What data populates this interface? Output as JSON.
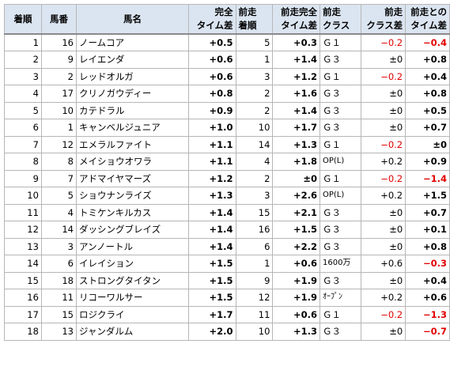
{
  "colors": {
    "header_bg": "#dbe5f1",
    "grid": "#b7b7b7",
    "negative": "#e00000",
    "text": "#000000"
  },
  "headers": {
    "finish": [
      "着順"
    ],
    "gate": [
      "馬番"
    ],
    "horse": [
      "馬名"
    ],
    "total_diff": [
      "完全",
      "タイム差"
    ],
    "prev_finish": [
      "前走",
      "着順"
    ],
    "prev_total_diff": [
      "前走完全",
      "タイム差"
    ],
    "prev_class": [
      "前走",
      "クラス"
    ],
    "prev_class_diff": [
      "前走",
      "クラス差"
    ],
    "diff_vs_prev": [
      "前走との",
      "タイム差"
    ]
  },
  "rows": [
    {
      "finish": "1",
      "gate": "16",
      "name": "ノームコア",
      "total": "+0.5",
      "prev_finish": "5",
      "prev_total": "+0.3",
      "prev_class": "Ｇ１",
      "class_diff": "−0.2",
      "class_diff_neg": true,
      "delta": "−0.4",
      "delta_neg": true
    },
    {
      "finish": "2",
      "gate": "9",
      "name": "レイエンダ",
      "total": "+0.6",
      "prev_finish": "1",
      "prev_total": "+1.4",
      "prev_class": "Ｇ３",
      "class_diff": "±0",
      "class_diff_neg": false,
      "delta": "+0.8",
      "delta_neg": false
    },
    {
      "finish": "3",
      "gate": "2",
      "name": "レッドオルガ",
      "total": "+0.6",
      "prev_finish": "3",
      "prev_total": "+1.2",
      "prev_class": "Ｇ１",
      "class_diff": "−0.2",
      "class_diff_neg": true,
      "delta": "+0.4",
      "delta_neg": false
    },
    {
      "finish": "4",
      "gate": "17",
      "name": "クリノガウディー",
      "total": "+0.8",
      "prev_finish": "2",
      "prev_total": "+1.6",
      "prev_class": "Ｇ３",
      "class_diff": "±0",
      "class_diff_neg": false,
      "delta": "+0.8",
      "delta_neg": false
    },
    {
      "finish": "5",
      "gate": "10",
      "name": "カテドラル",
      "total": "+0.9",
      "prev_finish": "2",
      "prev_total": "+1.4",
      "prev_class": "Ｇ３",
      "class_diff": "±0",
      "class_diff_neg": false,
      "delta": "+0.5",
      "delta_neg": false
    },
    {
      "finish": "6",
      "gate": "1",
      "name": "キャンベルジュニア",
      "total": "+1.0",
      "prev_finish": "10",
      "prev_total": "+1.7",
      "prev_class": "Ｇ３",
      "class_diff": "±0",
      "class_diff_neg": false,
      "delta": "+0.7",
      "delta_neg": false
    },
    {
      "finish": "7",
      "gate": "12",
      "name": "エメラルファイト",
      "total": "+1.1",
      "prev_finish": "14",
      "prev_total": "+1.3",
      "prev_class": "Ｇ１",
      "class_diff": "−0.2",
      "class_diff_neg": true,
      "delta": "±0",
      "delta_neg": false
    },
    {
      "finish": "8",
      "gate": "8",
      "name": "メイショウオワラ",
      "total": "+1.1",
      "prev_finish": "4",
      "prev_total": "+1.8",
      "prev_class": "OP(L)",
      "class_diff": "+0.2",
      "class_diff_neg": false,
      "delta": "+0.9",
      "delta_neg": false
    },
    {
      "finish": "9",
      "gate": "7",
      "name": "アドマイヤマーズ",
      "total": "+1.2",
      "prev_finish": "2",
      "prev_total": "±0",
      "prev_class": "Ｇ１",
      "class_diff": "−0.2",
      "class_diff_neg": true,
      "delta": "−1.4",
      "delta_neg": true
    },
    {
      "finish": "10",
      "gate": "5",
      "name": "ショウナンライズ",
      "total": "+1.3",
      "prev_finish": "3",
      "prev_total": "+2.6",
      "prev_class": "OP(L)",
      "class_diff": "+0.2",
      "class_diff_neg": false,
      "delta": "+1.5",
      "delta_neg": false
    },
    {
      "finish": "11",
      "gate": "4",
      "name": "トミケンキルカス",
      "total": "+1.4",
      "prev_finish": "15",
      "prev_total": "+2.1",
      "prev_class": "Ｇ３",
      "class_diff": "±0",
      "class_diff_neg": false,
      "delta": "+0.7",
      "delta_neg": false
    },
    {
      "finish": "12",
      "gate": "14",
      "name": "ダッシングブレイズ",
      "total": "+1.4",
      "prev_finish": "16",
      "prev_total": "+1.5",
      "prev_class": "Ｇ３",
      "class_diff": "±0",
      "class_diff_neg": false,
      "delta": "+0.1",
      "delta_neg": false
    },
    {
      "finish": "13",
      "gate": "3",
      "name": "アンノートル",
      "total": "+1.4",
      "prev_finish": "6",
      "prev_total": "+2.2",
      "prev_class": "Ｇ３",
      "class_diff": "±0",
      "class_diff_neg": false,
      "delta": "+0.8",
      "delta_neg": false
    },
    {
      "finish": "14",
      "gate": "6",
      "name": "イレイション",
      "total": "+1.5",
      "prev_finish": "1",
      "prev_total": "+0.6",
      "prev_class": "1600万",
      "class_diff": "+0.6",
      "class_diff_neg": false,
      "delta": "−0.3",
      "delta_neg": true
    },
    {
      "finish": "15",
      "gate": "18",
      "name": "ストロングタイタン",
      "total": "+1.5",
      "prev_finish": "9",
      "prev_total": "+1.9",
      "prev_class": "Ｇ３",
      "class_diff": "±0",
      "class_diff_neg": false,
      "delta": "+0.4",
      "delta_neg": false
    },
    {
      "finish": "16",
      "gate": "11",
      "name": "リコーワルサー",
      "total": "+1.5",
      "prev_finish": "12",
      "prev_total": "+1.9",
      "prev_class": "ｵｰﾌﾟﾝ",
      "class_diff": "+0.2",
      "class_diff_neg": false,
      "delta": "+0.6",
      "delta_neg": false
    },
    {
      "finish": "17",
      "gate": "15",
      "name": "ロジクライ",
      "total": "+1.7",
      "prev_finish": "11",
      "prev_total": "+0.6",
      "prev_class": "Ｇ１",
      "class_diff": "−0.2",
      "class_diff_neg": true,
      "delta": "−1.3",
      "delta_neg": true
    },
    {
      "finish": "18",
      "gate": "13",
      "name": "ジャンダルム",
      "total": "+2.0",
      "prev_finish": "10",
      "prev_total": "+1.3",
      "prev_class": "Ｇ３",
      "class_diff": "±0",
      "class_diff_neg": false,
      "delta": "−0.7",
      "delta_neg": true
    }
  ]
}
